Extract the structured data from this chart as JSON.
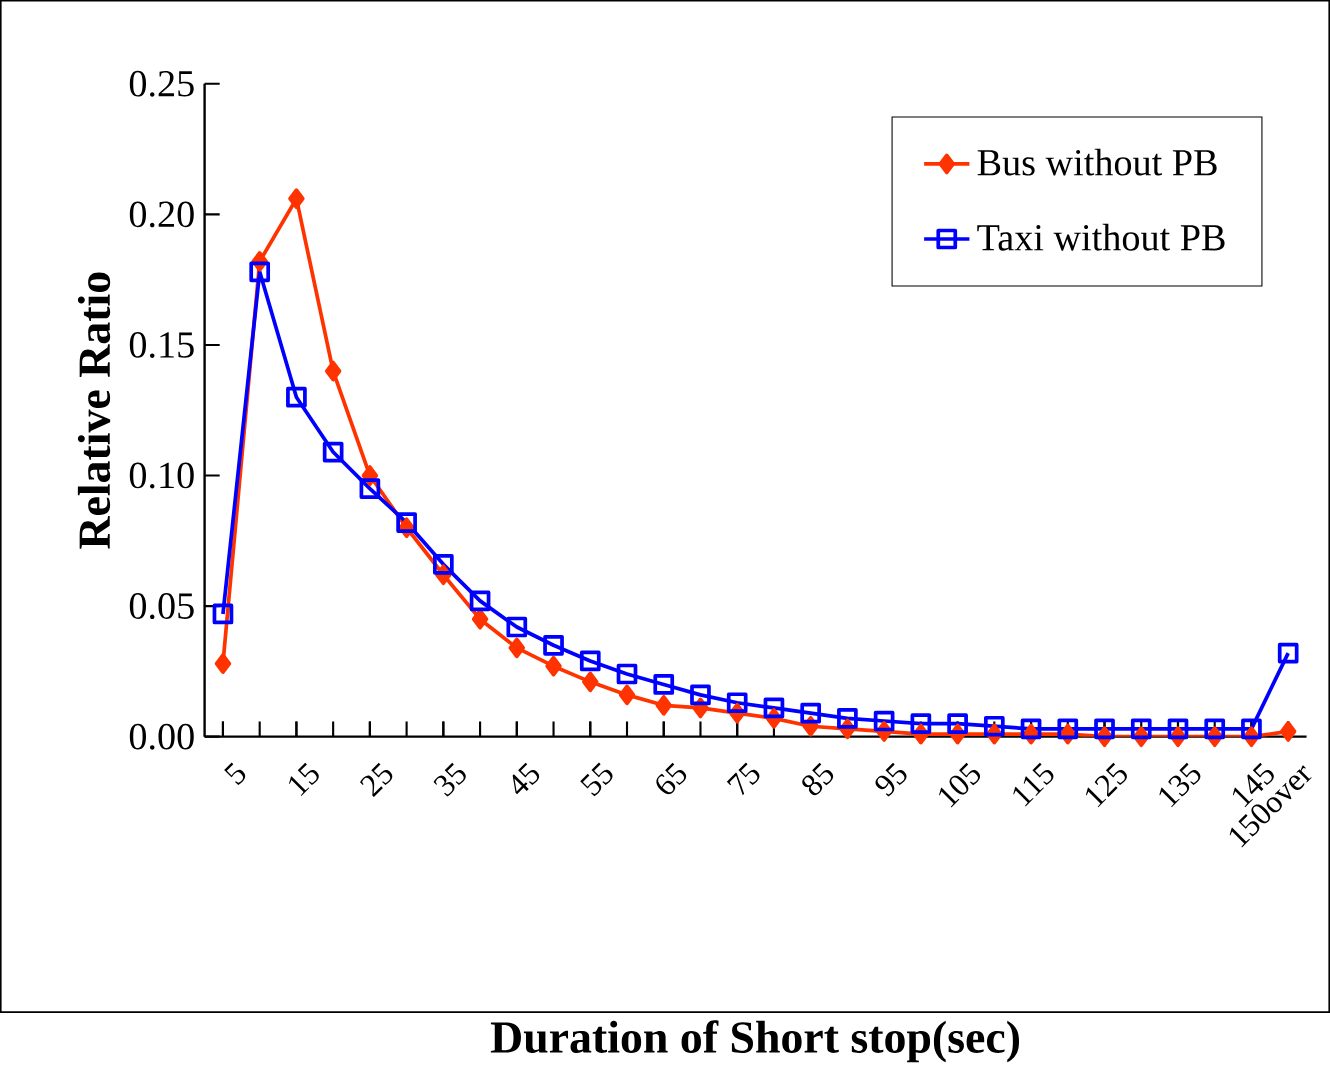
{
  "chart_data": {
    "type": "line",
    "xlabel": "Duration of Short stop(sec)",
    "ylabel": "Relative Ratio",
    "categories": [
      "5",
      null,
      "15",
      null,
      "25",
      null,
      "35",
      null,
      "45",
      null,
      "55",
      null,
      "65",
      null,
      "75",
      null,
      "85",
      null,
      "95",
      null,
      "105",
      null,
      "115",
      null,
      "125",
      null,
      "135",
      null,
      "145",
      "150over"
    ],
    "series": [
      {
        "name": "Bus without PB",
        "color": "#ff3300",
        "marker": "diamond",
        "values": [
          0.028,
          0.182,
          0.206,
          0.14,
          0.1,
          0.08,
          0.062,
          0.045,
          0.034,
          0.027,
          0.021,
          0.016,
          0.012,
          0.011,
          0.009,
          0.007,
          0.004,
          0.003,
          0.002,
          0.001,
          0.001,
          0.001,
          0.001,
          0.001,
          0,
          0,
          0,
          0,
          0,
          0.002
        ]
      },
      {
        "name": "Taxi without PB",
        "color": "#0000ff",
        "marker": "square",
        "values": [
          0.047,
          0.178,
          0.13,
          0.109,
          0.095,
          0.082,
          0.066,
          0.052,
          0.042,
          0.035,
          0.029,
          0.024,
          0.02,
          0.016,
          0.013,
          0.011,
          0.009,
          0.007,
          0.006,
          0.005,
          0.005,
          0.004,
          0.003,
          0.003,
          0.003,
          0.003,
          0.003,
          0.003,
          0.003,
          0.032
        ]
      }
    ],
    "ylim": [
      0,
      0.25
    ],
    "yticks": [
      {
        "value": 0,
        "label": "0.00"
      },
      {
        "value": 0.05,
        "label": "0.05"
      },
      {
        "value": 0.1,
        "label": "0.10"
      },
      {
        "value": 0.15,
        "label": "0.15"
      },
      {
        "value": 0.2,
        "label": "0.20"
      },
      {
        "value": 0.25,
        "label": "0.25"
      }
    ],
    "legend": "top right",
    "grid": false,
    "line_style": "solid"
  }
}
